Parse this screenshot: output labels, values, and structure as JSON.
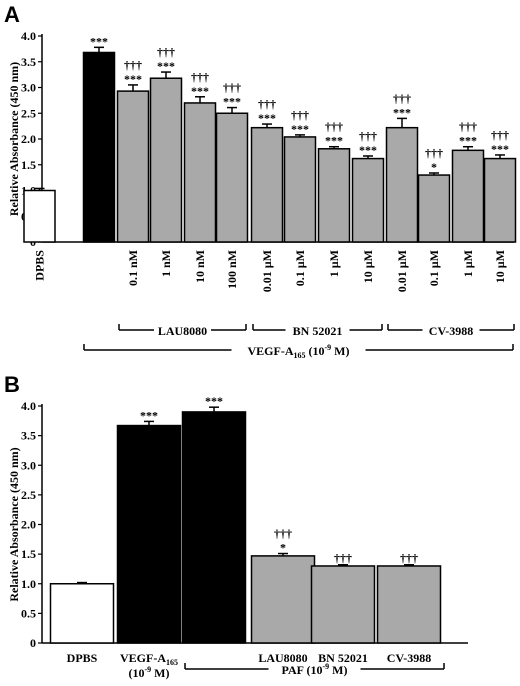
{
  "chart_data": [
    {
      "panel_label": "A",
      "type": "bar",
      "ylabel": "Relative Absorbance (450 nm)",
      "ylim": [
        0,
        4.0
      ],
      "yticks": [
        "0",
        "0.5",
        "1.0",
        "1.5",
        "2.0",
        "2.5",
        "3.0",
        "3.5",
        "4.0"
      ],
      "categories": [
        "DPBS",
        "",
        "0.1 nM",
        "1 nM",
        "10 nM",
        "100 nM",
        "0.01 µM",
        "0.1 µM",
        "1 µM",
        "10 µM",
        "0.01 µM",
        "0.1 µM",
        "1 µM",
        "10 µM"
      ],
      "values": [
        1.0,
        3.68,
        2.93,
        3.18,
        2.7,
        2.5,
        2.22,
        2.04,
        1.81,
        1.62,
        2.22,
        1.3,
        1.78,
        1.62
      ],
      "errors": [
        0.04,
        0.1,
        0.12,
        0.12,
        0.12,
        0.11,
        0.07,
        0.04,
        0.04,
        0.05,
        0.18,
        0.04,
        0.07,
        0.07
      ],
      "fills": [
        "#ffffff",
        "#000000",
        "#a9a9a9",
        "#a9a9a9",
        "#a9a9a9",
        "#a9a9a9",
        "#a9a9a9",
        "#a9a9a9",
        "#a9a9a9",
        "#a9a9a9",
        "#a9a9a9",
        "#a9a9a9",
        "#a9a9a9",
        "#a9a9a9"
      ],
      "sig_top": [
        "",
        "",
        "†††",
        "†††",
        "†††",
        "†††",
        "†††",
        "†††",
        "†††",
        "†††",
        "†††",
        "†††",
        "†††",
        "†††"
      ],
      "sig_bottom": [
        "",
        "***",
        "***",
        "***",
        "***",
        "***",
        "***",
        "***",
        "***",
        "***",
        "***",
        "*",
        "***",
        "***"
      ],
      "groups": [
        {
          "label": "LAU8080",
          "from": 2,
          "to": 5,
          "level": 1
        },
        {
          "label": "BN 52021",
          "from": 6,
          "to": 9,
          "level": 1
        },
        {
          "label": "CV-3988",
          "from": 10,
          "to": 13,
          "level": 1
        },
        {
          "label": "VEGF-A165 (10-9 M)",
          "from": 1,
          "to": 13,
          "level": 2
        }
      ]
    },
    {
      "panel_label": "B",
      "type": "bar",
      "ylabel": "Relative Absorbance (450 nm)",
      "ylim": [
        0,
        4.0
      ],
      "yticks": [
        "0",
        "0.5",
        "1.0",
        "1.5",
        "2.0",
        "2.5",
        "3.0",
        "3.5",
        "4.0"
      ],
      "categories": [
        "DPBS",
        "VEGF-A165",
        "",
        "LAU8080",
        "BN 52021",
        "CV-3988"
      ],
      "category_sublabel": [
        "",
        "(10-9 M)",
        "",
        "",
        "",
        ""
      ],
      "values": [
        1.0,
        3.67,
        3.9,
        1.47,
        1.3,
        1.3
      ],
      "errors": [
        0.02,
        0.07,
        0.08,
        0.04,
        0.02,
        0.02
      ],
      "fills": [
        "#ffffff",
        "#000000",
        "#000000",
        "#a9a9a9",
        "#a9a9a9",
        "#a9a9a9"
      ],
      "sig_top": [
        "",
        "",
        "",
        "†††",
        "†††",
        "†††"
      ],
      "sig_bottom": [
        "",
        "***",
        "***",
        "*",
        "",
        ""
      ],
      "groups": [
        {
          "label": "PAF (10-9 M)",
          "from": 2,
          "to": 5,
          "level": 1
        }
      ]
    }
  ]
}
